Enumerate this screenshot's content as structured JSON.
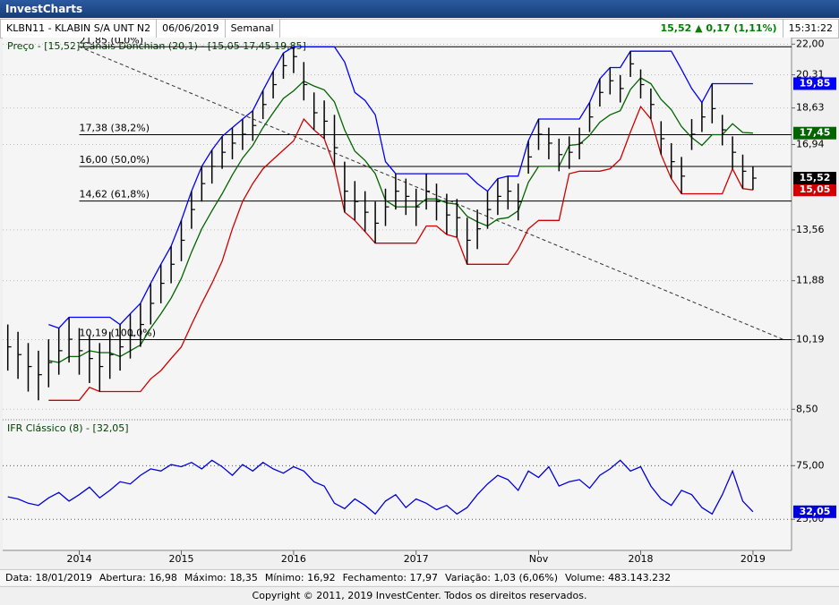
{
  "header": {
    "title": "InvestCharts"
  },
  "info": {
    "symbol": "KLBN11 - KLABIN S/A UNT N2",
    "date": "06/06/2019",
    "period": "Semanal",
    "quote": "15,52 ▲ 0,17 (1,11%)",
    "time": "15:31:22"
  },
  "chart_data": [
    {
      "type": "ohlc",
      "log_scale": true,
      "grid": true,
      "ylim": [
        8.29,
        22.38
      ],
      "yticks": [
        {
          "value": 22,
          "label": "22,00"
        },
        {
          "value": 20.31,
          "label": "20,31"
        },
        {
          "value": 18.63,
          "label": "18,63"
        },
        {
          "value": 16.94,
          "label": "16,94"
        },
        {
          "value": 13.56,
          "label": "13,56"
        },
        {
          "value": 11.88,
          "label": "11,88"
        },
        {
          "value": 10.19,
          "label": "10,19"
        },
        {
          "value": 8.5,
          "label": "8,50"
        }
      ],
      "series": [
        {
          "name": "Preço - [15,52]",
          "color": "#000000",
          "last_label": "15,52",
          "high": [
            10.6,
            10.4,
            10.1,
            9.9,
            10.2,
            10.5,
            10.8,
            10.5,
            10.3,
            10.1,
            10.4,
            10.6,
            10.9,
            11.2,
            11.8,
            12.4,
            13.0,
            13.9,
            15.0,
            16.0,
            16.7,
            17.3,
            17.7,
            18.1,
            18.5,
            19.5,
            20.5,
            21.5,
            21.85,
            21.0,
            19.4,
            19.0,
            18.3,
            16.2,
            15.4,
            15.0,
            14.6,
            15.1,
            15.7,
            15.5,
            15.1,
            15.7,
            15.3,
            14.9,
            14.7,
            14.0,
            14.3,
            15.0,
            15.5,
            15.6,
            15.3,
            17.1,
            18.1,
            17.7,
            17.2,
            17.3,
            17.7,
            18.9,
            20.1,
            20.7,
            20.3,
            21.6,
            20.6,
            19.6,
            18.0,
            17.0,
            16.4,
            18.1,
            18.9,
            19.85,
            18.3,
            17.3,
            16.5,
            16.0
          ],
          "low": [
            9.4,
            9.2,
            8.9,
            8.7,
            9.0,
            9.3,
            9.6,
            9.3,
            9.1,
            8.9,
            9.2,
            9.4,
            9.7,
            10.0,
            10.6,
            11.2,
            11.8,
            12.5,
            13.6,
            14.6,
            15.3,
            15.9,
            16.3,
            16.7,
            17.1,
            18.1,
            19.1,
            20.1,
            20.4,
            19.0,
            17.6,
            17.2,
            16.0,
            14.2,
            13.9,
            13.5,
            13.1,
            13.7,
            14.3,
            14.1,
            13.7,
            14.3,
            13.9,
            13.4,
            13.3,
            12.4,
            12.9,
            13.6,
            14.1,
            14.3,
            13.9,
            15.7,
            16.7,
            16.3,
            15.8,
            15.9,
            16.3,
            17.5,
            18.7,
            19.3,
            18.9,
            20.2,
            19.1,
            18.1,
            16.5,
            15.5,
            14.9,
            16.7,
            17.5,
            17.9,
            16.9,
            15.9,
            15.1,
            15.05
          ],
          "close": [
            10.0,
            9.8,
            9.5,
            9.3,
            9.6,
            9.9,
            10.2,
            9.9,
            9.7,
            9.5,
            9.8,
            10.0,
            10.3,
            10.6,
            11.2,
            11.8,
            12.4,
            13.2,
            14.3,
            15.3,
            16.0,
            16.6,
            17.0,
            17.4,
            17.8,
            18.8,
            19.8,
            20.8,
            21.3,
            19.8,
            18.4,
            18.0,
            16.8,
            15.0,
            14.6,
            14.2,
            13.8,
            14.4,
            15.0,
            14.8,
            14.4,
            15.0,
            14.6,
            14.1,
            14.0,
            13.2,
            13.6,
            14.3,
            14.8,
            15.0,
            14.6,
            16.4,
            17.4,
            17.0,
            16.5,
            16.6,
            17.0,
            18.2,
            19.4,
            20.0,
            19.6,
            20.9,
            19.8,
            18.8,
            17.2,
            16.2,
            15.6,
            17.4,
            18.2,
            18.6,
            17.6,
            16.6,
            15.8,
            15.52
          ]
        }
      ],
      "channel": {
        "name": "Canais Donchian (20,1) - [15,05 17,45 19,85]",
        "lines": [
          {
            "color": "#0000ff",
            "last_label": "19,85",
            "values": [
              null,
              null,
              null,
              null,
              10.6,
              10.5,
              10.8,
              10.8,
              10.8,
              10.8,
              10.8,
              10.6,
              10.9,
              11.2,
              11.8,
              12.4,
              13.0,
              13.9,
              15.0,
              16.0,
              16.7,
              17.3,
              17.7,
              18.1,
              18.5,
              19.5,
              20.5,
              21.5,
              21.85,
              21.85,
              21.85,
              21.85,
              21.85,
              21.0,
              19.4,
              19.0,
              18.3,
              16.2,
              15.7,
              15.7,
              15.7,
              15.7,
              15.7,
              15.7,
              15.7,
              15.7,
              15.3,
              15.0,
              15.5,
              15.6,
              15.6,
              17.1,
              18.1,
              18.1,
              18.1,
              18.1,
              18.1,
              18.9,
              20.1,
              20.7,
              20.7,
              21.6,
              21.6,
              21.6,
              21.6,
              21.6,
              20.6,
              19.6,
              18.9,
              19.85,
              19.85,
              19.85,
              19.85,
              19.85
            ]
          },
          {
            "color": "#006400",
            "last_label": "17,45",
            "values": [
              null,
              null,
              null,
              null,
              9.65,
              9.6,
              9.75,
              9.75,
              9.9,
              9.85,
              9.85,
              9.75,
              9.9,
              10.05,
              10.5,
              10.9,
              11.35,
              11.95,
              12.8,
              13.6,
              14.25,
              14.9,
              15.65,
              16.35,
              16.9,
              17.7,
              18.4,
              19.1,
              19.48,
              19.98,
              19.73,
              19.53,
              18.93,
              17.6,
              16.65,
              16.25,
              15.7,
              14.65,
              14.4,
              14.4,
              14.4,
              14.7,
              14.7,
              14.55,
              14.5,
              14.05,
              13.85,
              13.7,
              13.95,
              14.0,
              14.25,
              15.35,
              16.0,
              16.0,
              16.0,
              16.9,
              16.95,
              17.35,
              17.95,
              18.3,
              18.5,
              19.55,
              20.15,
              19.85,
              19.05,
              18.55,
              17.75,
              17.25,
              16.9,
              17.38,
              17.38,
              17.88,
              17.48,
              17.45
            ]
          },
          {
            "color": "#d00000",
            "last_label": "15,05",
            "values": [
              null,
              null,
              null,
              null,
              8.7,
              8.7,
              8.7,
              8.7,
              9.0,
              8.9,
              8.9,
              8.9,
              8.9,
              8.9,
              9.2,
              9.4,
              9.7,
              10.0,
              10.6,
              11.2,
              11.8,
              12.5,
              13.6,
              14.6,
              15.3,
              15.9,
              16.3,
              16.7,
              17.1,
              18.1,
              17.6,
              17.2,
              16.0,
              14.2,
              13.9,
              13.5,
              13.1,
              13.1,
              13.1,
              13.1,
              13.1,
              13.7,
              13.7,
              13.4,
              13.3,
              12.4,
              12.4,
              12.4,
              12.4,
              12.4,
              12.9,
              13.6,
              13.9,
              13.9,
              13.9,
              15.7,
              15.8,
              15.8,
              15.8,
              15.9,
              16.3,
              17.5,
              18.7,
              18.1,
              16.5,
              15.5,
              14.9,
              14.9,
              14.9,
              14.9,
              14.9,
              15.9,
              15.1,
              15.05
            ]
          }
        ]
      },
      "fib_levels": [
        {
          "value": 21.85,
          "label": "21,85 (0,0%)"
        },
        {
          "value": 17.38,
          "label": "17,38 (38,2%)"
        },
        {
          "value": 16.0,
          "label": "16,00 (50,0%)"
        },
        {
          "value": 14.62,
          "label": "14,62 (61,8%)"
        },
        {
          "value": 10.19,
          "label": "10,19 (100,0%)"
        }
      ],
      "trend_line": {
        "x": [
          7,
          76
        ],
        "y": [
          21.85,
          10.19
        ]
      }
    },
    {
      "type": "line",
      "title": "IFR Clássico (8) - [32,05]",
      "grid": true,
      "categories": [
        null,
        null,
        null,
        null,
        null,
        null,
        null,
        "2014",
        null,
        null,
        null,
        null,
        null,
        null,
        null,
        null,
        null,
        "2015",
        null,
        null,
        null,
        null,
        null,
        null,
        null,
        null,
        null,
        null,
        "2016",
        null,
        null,
        null,
        null,
        null,
        null,
        null,
        null,
        null,
        null,
        null,
        "2017",
        null,
        null,
        null,
        null,
        null,
        null,
        null,
        null,
        null,
        null,
        null,
        "Nov",
        null,
        null,
        null,
        null,
        null,
        null,
        null,
        null,
        null,
        "2018",
        null,
        null,
        null,
        null,
        null,
        null,
        null,
        null,
        null,
        null,
        "2019"
      ],
      "ylim": [
        -4,
        117
      ],
      "yticks": [
        {
          "value": 75,
          "label": "75,00"
        },
        {
          "value": 25,
          "label": "25,00"
        }
      ],
      "series": [
        {
          "color": "#0000dd",
          "last_label": "32,05",
          "values": [
            46,
            44,
            40,
            38,
            45,
            50,
            42,
            48,
            55,
            45,
            52,
            60,
            58,
            66,
            72,
            70,
            76,
            74,
            78,
            72,
            80,
            74,
            66,
            76,
            70,
            78,
            72,
            68,
            74,
            70,
            60,
            56,
            40,
            35,
            44,
            38,
            30,
            42,
            48,
            36,
            44,
            40,
            34,
            38,
            30,
            36,
            48,
            58,
            66,
            62,
            52,
            70,
            64,
            74,
            56,
            60,
            62,
            54,
            66,
            72,
            80,
            70,
            74,
            56,
            44,
            38,
            52,
            48,
            36,
            30,
            48,
            70,
            42,
            32.05
          ]
        }
      ]
    }
  ],
  "footer": {
    "details": [
      "Data: 18/01/2019",
      "Abertura: 16,98",
      "Máximo: 18,35",
      "Mínimo: 16,92",
      "Fechamento: 17,97",
      "Variação: 1,03 (6,06%)",
      "Volume: 483.143.232"
    ],
    "copyright": "Copyright © 2011, 2019 InvestCenter. Todos os direitos reservados."
  }
}
